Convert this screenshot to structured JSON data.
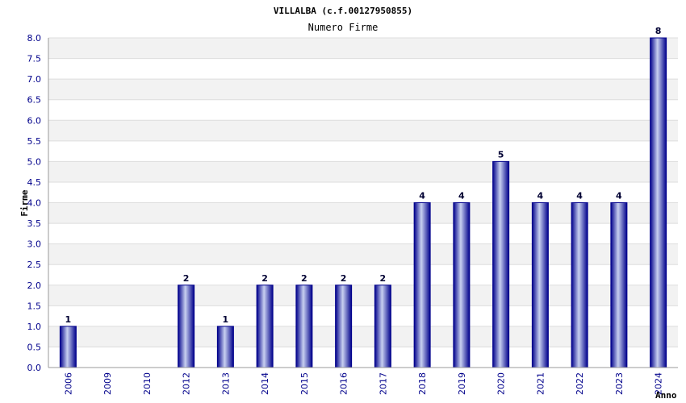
{
  "chart_data": {
    "type": "bar",
    "title": "VILLALBA (c.f.00127950855)",
    "subtitle": "Numero Firme",
    "xlabel": "Anno",
    "ylabel": "Firme",
    "categories": [
      "2006",
      "2009",
      "2010",
      "2012",
      "2013",
      "2014",
      "2015",
      "2016",
      "2017",
      "2018",
      "2019",
      "2020",
      "2021",
      "2022",
      "2023",
      "2024"
    ],
    "values": [
      1,
      0,
      0,
      2,
      1,
      2,
      2,
      2,
      2,
      4,
      4,
      5,
      4,
      4,
      4,
      8
    ],
    "ylim": [
      0,
      8
    ],
    "ytick_step": 0.5,
    "grid": true,
    "bar_color": "#00008b",
    "bar_highlight": "#c8d0f0",
    "band_color": "#f2f2f2"
  }
}
